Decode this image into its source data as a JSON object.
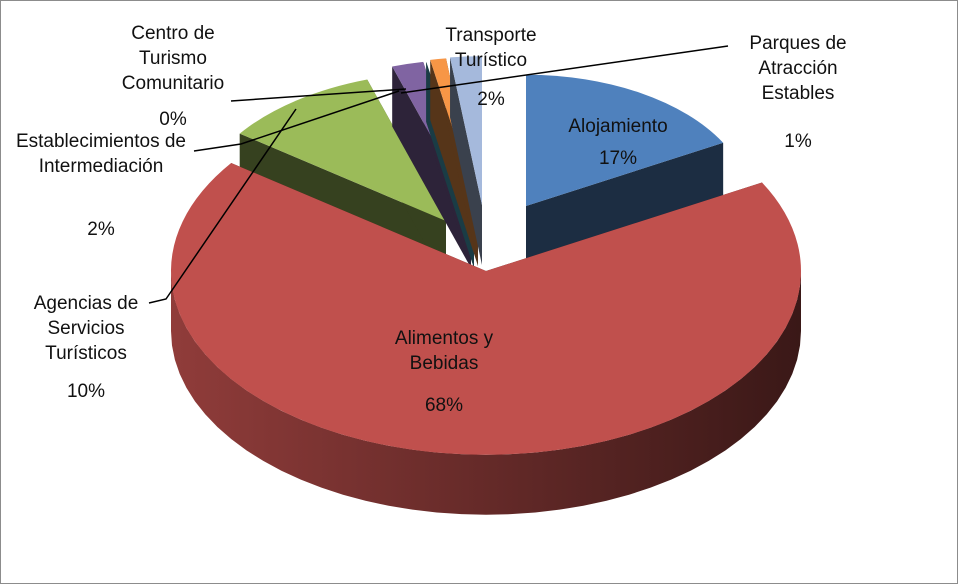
{
  "chart_data": {
    "type": "pie",
    "categories": [
      "Alojamiento",
      "Alimentos y Bebidas",
      "Agencias de Servicios Turísticos",
      "Establecimientos de Intermediación",
      "Centro de Turismo Comunitario",
      "Parques de Atracción Estables",
      "Transporte Turístico"
    ],
    "values": [
      17,
      68,
      10,
      2,
      0,
      1,
      2
    ],
    "value_labels": [
      "17%",
      "68%",
      "10%",
      "2%",
      "0%",
      "1%",
      "2%"
    ],
    "colors": [
      "#4f81bd",
      "#c0504d",
      "#9bbb59",
      "#8064a2",
      "#4bacc6",
      "#f79646",
      "#a5b9dc"
    ]
  }
}
